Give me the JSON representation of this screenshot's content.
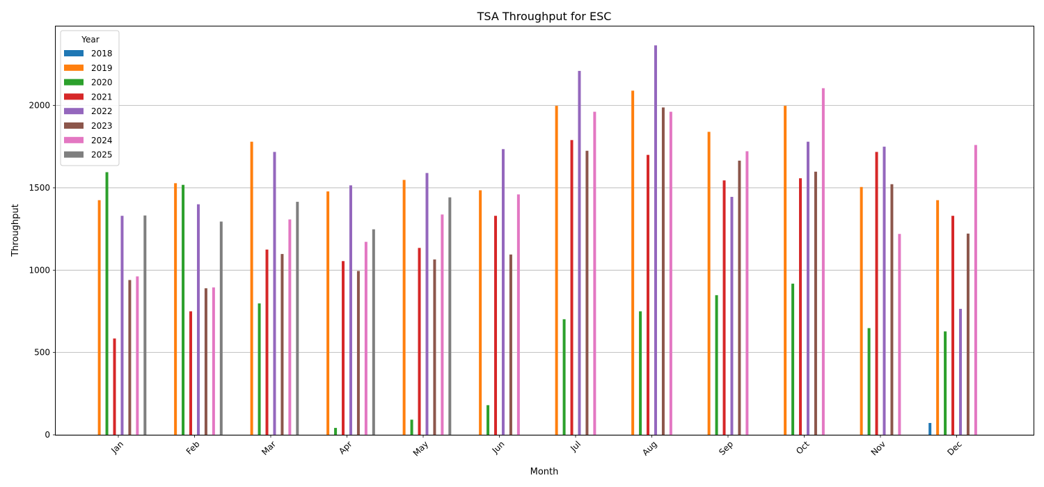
{
  "chart_data": {
    "type": "bar",
    "title": "TSA Throughput for ESC",
    "xlabel": "Month",
    "ylabel": "Throughput",
    "categories": [
      "Jan",
      "Feb",
      "Mar",
      "Apr",
      "May",
      "Jun",
      "Jul",
      "Aug",
      "Sep",
      "Oct",
      "Nov",
      "Dec"
    ],
    "ylim": [
      0,
      2480
    ],
    "yticks": [
      0,
      500,
      1000,
      1500,
      2000
    ],
    "grid": "horizontal",
    "legend": {
      "title": "Year",
      "placement": "top-left"
    },
    "series": [
      {
        "name": "2018",
        "color": "#1f77b4",
        "values": [
          null,
          null,
          null,
          null,
          null,
          null,
          null,
          null,
          null,
          null,
          null,
          72
        ]
      },
      {
        "name": "2019",
        "color": "#ff7f0e",
        "values": [
          1425,
          1528,
          1780,
          1478,
          1548,
          1485,
          1998,
          2090,
          1840,
          1998,
          1505,
          1425
        ]
      },
      {
        "name": "2020",
        "color": "#2ca02c",
        "values": [
          1595,
          1518,
          798,
          42,
          92,
          180,
          702,
          750,
          848,
          918,
          648,
          628
        ]
      },
      {
        "name": "2021",
        "color": "#d62728",
        "values": [
          585,
          750,
          1125,
          1055,
          1135,
          1330,
          1790,
          1700,
          1545,
          1558,
          1718,
          1330
        ]
      },
      {
        "name": "2022",
        "color": "#9467bd",
        "values": [
          1330,
          1400,
          1718,
          1515,
          1590,
          1735,
          2210,
          2365,
          1445,
          1780,
          1750,
          765
        ]
      },
      {
        "name": "2023",
        "color": "#8c564b",
        "values": [
          940,
          890,
          1098,
          995,
          1065,
          1095,
          1725,
          1988,
          1665,
          1598,
          1522,
          1222
        ]
      },
      {
        "name": "2024",
        "color": "#e377c2",
        "values": [
          962,
          895,
          1308,
          1172,
          1338,
          1460,
          1962,
          1962,
          1722,
          2105,
          1220,
          1760
        ]
      },
      {
        "name": "2025",
        "color": "#7f7f7f",
        "values": [
          1332,
          1295,
          1415,
          1248,
          1442,
          null,
          null,
          null,
          null,
          null,
          null,
          null
        ]
      }
    ]
  }
}
